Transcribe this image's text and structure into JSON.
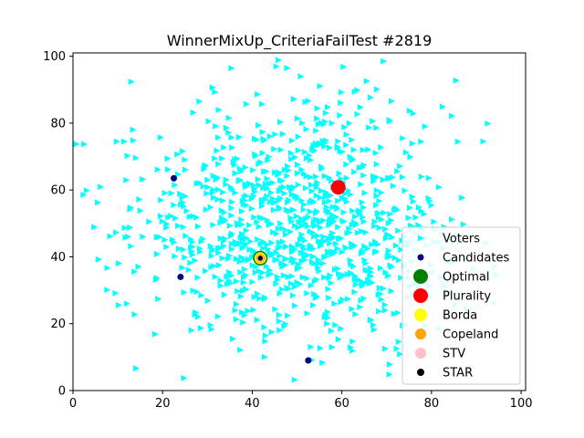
{
  "chart_data": {
    "type": "scatter",
    "title": "WinnerMixUp_CriteriaFailTest #2819",
    "xlim": [
      0,
      101
    ],
    "ylim": [
      0,
      101
    ],
    "x_ticks": [
      0,
      20,
      40,
      60,
      80,
      100
    ],
    "y_ticks": [
      0,
      20,
      40,
      60,
      80,
      100
    ],
    "grid": false,
    "legend_position": "lower-right",
    "series": [
      {
        "name": "Voters",
        "marker": "triangle-right",
        "color": "#00ffff",
        "count": 1000,
        "center": [
          50,
          50
        ],
        "spread": 18
      },
      {
        "name": "Candidates",
        "marker": "circle",
        "color": "#000080",
        "points": [
          [
            22.5,
            63.5
          ],
          [
            24.0,
            34.0
          ],
          [
            52.5,
            9.0
          ],
          [
            41.8,
            39.5
          ],
          [
            59.2,
            60.8
          ]
        ]
      },
      {
        "name": "Optimal",
        "marker": "circle",
        "color": "#008000",
        "points": [
          [
            41.8,
            39.6
          ]
        ]
      },
      {
        "name": "Plurality",
        "marker": "circle",
        "color": "#ff0000",
        "points": [
          [
            59.2,
            60.8
          ]
        ]
      },
      {
        "name": "Borda",
        "marker": "circle",
        "color": "#ffff00",
        "points": [
          [
            41.8,
            39.6
          ]
        ]
      },
      {
        "name": "Copeland",
        "marker": "circle",
        "color": "#ffa500",
        "points": [
          [
            41.8,
            39.6
          ]
        ]
      },
      {
        "name": "STV",
        "marker": "circle",
        "color": "#ffc0cb",
        "points": [
          [
            41.8,
            39.6
          ]
        ]
      },
      {
        "name": "STAR",
        "marker": "circle",
        "color": "#000000",
        "points": [
          [
            41.8,
            39.6
          ]
        ]
      }
    ]
  }
}
